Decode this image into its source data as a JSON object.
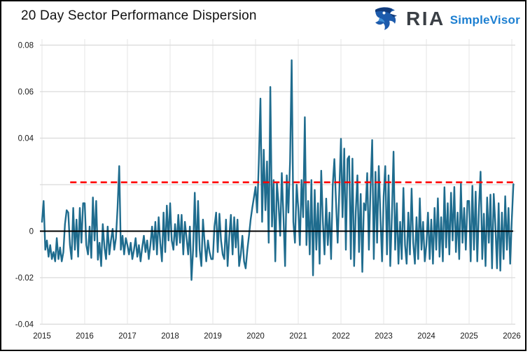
{
  "header": {
    "title": "20 Day Sector Performance Dispersion",
    "logo": {
      "brand": "RIA",
      "product": "SimpleVisor"
    }
  },
  "colors": {
    "series_line": "#1f6c8e",
    "threshold_line": "#ff0000",
    "zero_line": "#000000",
    "grid_h": "#d9d9d9",
    "grid_v": "#e6e6e6",
    "tick_text": "#1a1a1a",
    "title_text": "#111111",
    "brand_dark": "#3a3f45",
    "brand_blue": "#1c7fd1"
  },
  "chart_data": {
    "type": "line",
    "title": "20 Day Sector Performance Dispersion",
    "xlabel": "",
    "ylabel": "",
    "grid": true,
    "legend": false,
    "x_axis": {
      "tick_labels": [
        "2015",
        "2016",
        "2017",
        "2018",
        "2019",
        "2020",
        "2021",
        "2022",
        "2023",
        "2024",
        "2025",
        "2026"
      ],
      "tick_values": [
        2015,
        2016,
        2017,
        2018,
        2019,
        2020,
        2021,
        2022,
        2023,
        2024,
        2025,
        2026
      ],
      "range": [
        2014.95,
        2026.1
      ]
    },
    "y_axis": {
      "ticks": [
        {
          "v": 0.08,
          "label": "0.08"
        },
        {
          "v": 0.06,
          "label": "0.06"
        },
        {
          "v": 0.04,
          "label": "0.04"
        },
        {
          "v": 0.02,
          "label": ""
        },
        {
          "v": 0,
          "label": "0"
        },
        {
          "v": -0.02,
          "label": "-0.02"
        },
        {
          "v": -0.04,
          "label": "-0.04"
        }
      ],
      "range": [
        -0.045,
        0.085
      ]
    },
    "threshold_line": {
      "value": 0.021,
      "style": "dashed",
      "color": "#ff0000",
      "x_start_year": 2015.66,
      "x_end_year": 2026.05
    },
    "zero_line": {
      "value": 0,
      "color": "#000000"
    },
    "series": [
      {
        "name": "20-day sector performance dispersion",
        "color": "#1f6c8e",
        "start_year": 2015,
        "points_per_year": 26,
        "values": [
          0.004,
          0.013,
          -0.008,
          -0.004,
          -0.011,
          -0.006,
          -0.012,
          -0.009,
          -0.013,
          -0.003,
          -0.012,
          -0.007,
          -0.013,
          -0.009,
          0.003,
          0.009,
          0.008,
          -0.006,
          -0.012,
          0.01,
          -0.008,
          0.005,
          -0.011,
          0.01,
          -0.005,
          0.012,
          0.012,
          -0.006,
          -0.01,
          0.002,
          -0.0115,
          0.0145,
          -0.004,
          0.013,
          -0.0123,
          -0.005,
          -0.015,
          0.003,
          -0.007,
          -0.012,
          0.002,
          -0.01,
          -0.004,
          0.001,
          -0.008,
          -0.003,
          0.01,
          0.028,
          -0.008,
          -0.002,
          -0.01,
          -0.003,
          -0.006,
          -0.01,
          -0.005,
          -0.012,
          -0.008,
          -0.003,
          -0.011,
          -0.006,
          -0.013,
          -0.007,
          -0.002,
          -0.009,
          -0.004,
          -0.012,
          -0.006,
          0.002,
          -0.008,
          0.004,
          -0.01,
          0.006,
          -0.005,
          -0.013,
          0.008,
          -0.009,
          0.011,
          -0.004,
          0.012,
          -0.004,
          -0.008,
          0.003,
          -0.006,
          0.007,
          -0.005,
          0.007,
          -0.01,
          0.004,
          -0.003,
          -0.01,
          0.002,
          -0.021,
          -0.008,
          0.0165,
          -0.011,
          0.013,
          -0.008,
          -0.015,
          0.005,
          -0.005,
          -0.013,
          -0.004,
          -0.009,
          -0.012,
          -0.012,
          0.002,
          0.008,
          -0.009,
          0.0075,
          -0.004,
          -0.01,
          -0.012,
          0.005,
          -0.015,
          -0.002,
          0.007,
          -0.01,
          0.006,
          -0.007,
          0.005,
          -0.015,
          -0.01,
          -0.002,
          -0.013,
          -0.016,
          -0.008,
          -0.002,
          0.005,
          0.01,
          0.0145,
          0.019,
          0.008,
          0.03,
          0.057,
          0.004,
          0.035,
          0.009,
          0.03,
          -0.005,
          0.062,
          0.002,
          0.022,
          -0.013,
          0.021,
          0.012,
          -0.002,
          0.025,
          0.006,
          -0.015,
          0.024,
          0.008,
          0.03,
          0.0735,
          0.004,
          -0.005,
          0.02,
          0.01,
          -0.006,
          0.022,
          0.006,
          0.049,
          -0.006,
          0.013,
          -0.01,
          0.022,
          -0.019,
          0.0177,
          -0.008,
          0.012,
          -0.014,
          0.026,
          0.004,
          -0.01,
          0.014,
          -0.006,
          0.008,
          -0.012,
          0.02,
          0.031,
          0.012,
          -0.005,
          0.018,
          0.0397,
          0.006,
          0.0355,
          -0.008,
          0.031,
          0.0322,
          -0.012,
          0.0312,
          -0.015,
          0.008,
          0.024,
          -0.009,
          0.016,
          -0.0175,
          0.012,
          0.009,
          0.025,
          -0.008,
          0.018,
          0.0392,
          -0.012,
          0.0255,
          -0.005,
          0.028,
          0.007,
          -0.013,
          0.015,
          0.028,
          -0.01,
          0.024,
          -0.015,
          0.006,
          0.0342,
          -0.008,
          0.012,
          -0.014,
          0.004,
          -0.012,
          0.0186,
          -0.006,
          -0.014,
          0.008,
          -0.01,
          0.0183,
          -0.005,
          -0.014,
          0.006,
          -0.012,
          0.0141,
          -0.008,
          0.004,
          -0.013,
          -0.006,
          0.008,
          -0.012,
          0.005,
          -0.014,
          0.01,
          -0.008,
          0.0141,
          -0.011,
          0.006,
          -0.013,
          0.0189,
          -0.007,
          0.012,
          -0.01,
          0.0165,
          -0.004,
          0.019,
          -0.009,
          0.008,
          -0.012,
          0.0204,
          -0.005,
          0.01,
          -0.008,
          0.013,
          0.013,
          -0.013,
          0.0195,
          -0.008,
          0.017,
          -0.013,
          0.01,
          0.0256,
          -0.012,
          0.0075,
          -0.015,
          0.0145,
          -0.005,
          0.0157,
          -0.016,
          0.016,
          0.003,
          -0.016,
          0.012,
          -0.017,
          0.008,
          -0.012,
          0.015,
          -0.008,
          0.01,
          -0.014,
          0.005,
          0.0202
        ]
      }
    ]
  }
}
